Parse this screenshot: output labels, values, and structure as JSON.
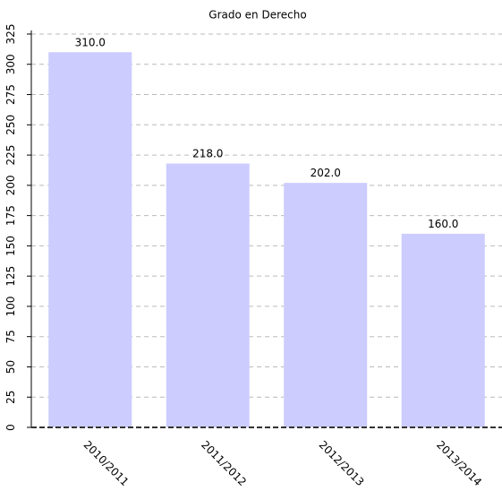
{
  "chart_data": {
    "type": "bar",
    "subtitle": "Grado en Derecho",
    "categories": [
      "2010/2011",
      "2011/2012",
      "2012/2013",
      "2013/2014"
    ],
    "values": [
      310,
      218,
      202,
      160
    ],
    "value_labels": [
      "310.0",
      "218.0",
      "202.0",
      "160.0"
    ],
    "color": "#ccccff",
    "ylim": [
      0,
      325
    ],
    "yticks": [
      0,
      25,
      50,
      75,
      100,
      125,
      150,
      175,
      200,
      225,
      250,
      275,
      300,
      325
    ],
    "grid": true
  }
}
